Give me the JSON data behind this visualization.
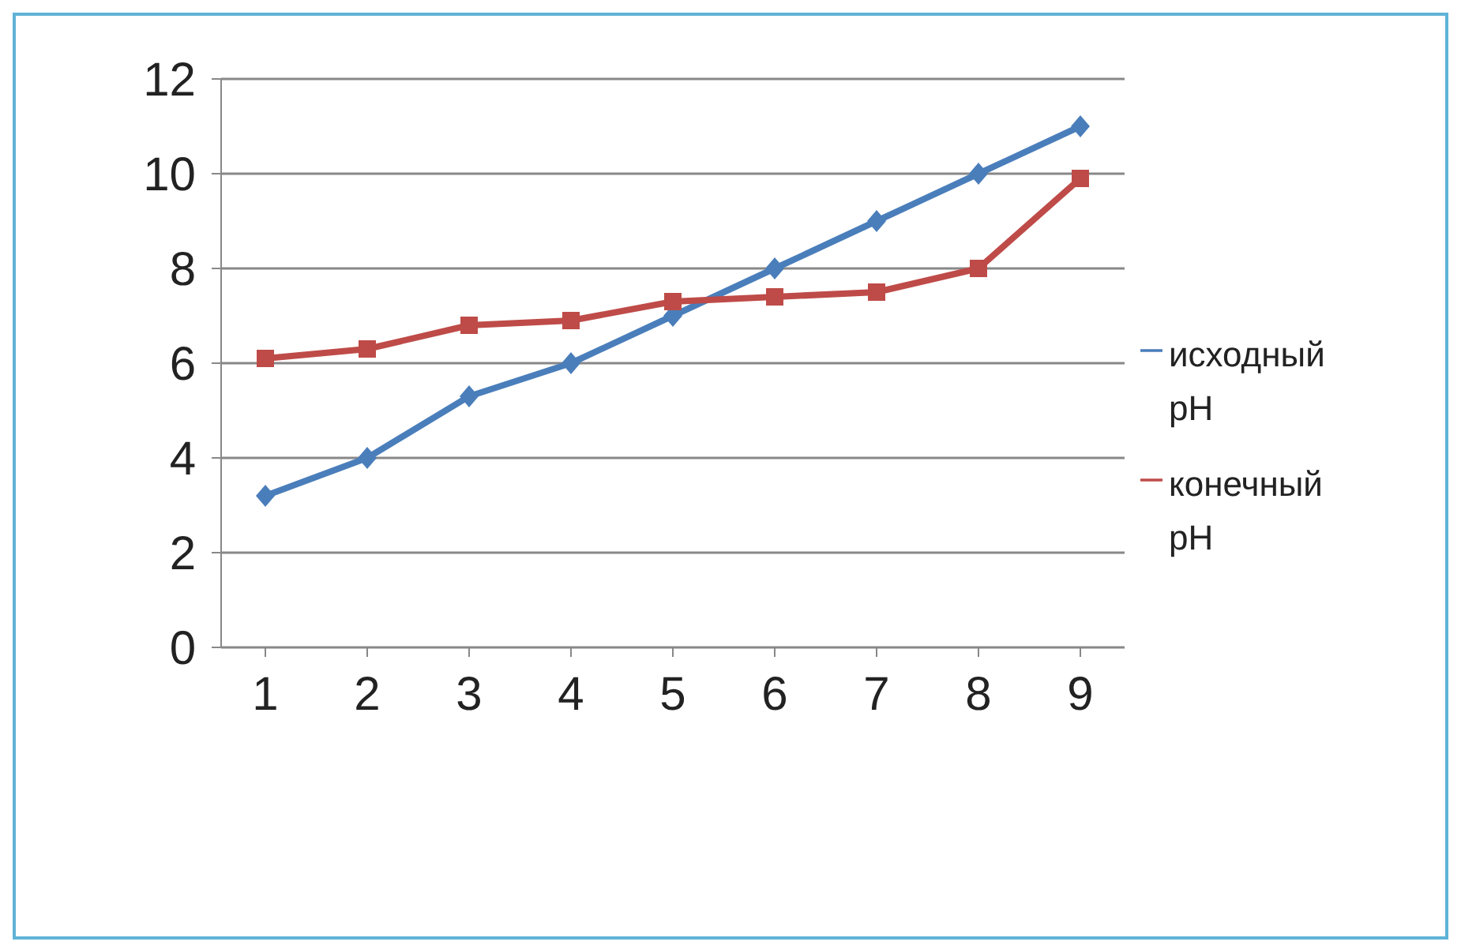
{
  "chart_data": {
    "type": "line",
    "categories": [
      "1",
      "2",
      "3",
      "4",
      "5",
      "6",
      "7",
      "8",
      "9"
    ],
    "series": [
      {
        "name": "исходный pH",
        "color": "#4a7ebb",
        "marker": "diamond",
        "values": [
          3.2,
          4.0,
          5.3,
          6.0,
          7.0,
          8.0,
          9.0,
          10.0,
          11.0
        ]
      },
      {
        "name": "конечный pH",
        "color": "#be4b48",
        "marker": "square",
        "values": [
          6.1,
          6.3,
          6.8,
          6.9,
          7.3,
          7.4,
          7.5,
          8.0,
          9.9
        ]
      }
    ],
    "ylim": [
      0,
      12
    ],
    "yticks": [
      0,
      2,
      4,
      6,
      8,
      10,
      12
    ],
    "grid": "y",
    "legend": "right"
  }
}
